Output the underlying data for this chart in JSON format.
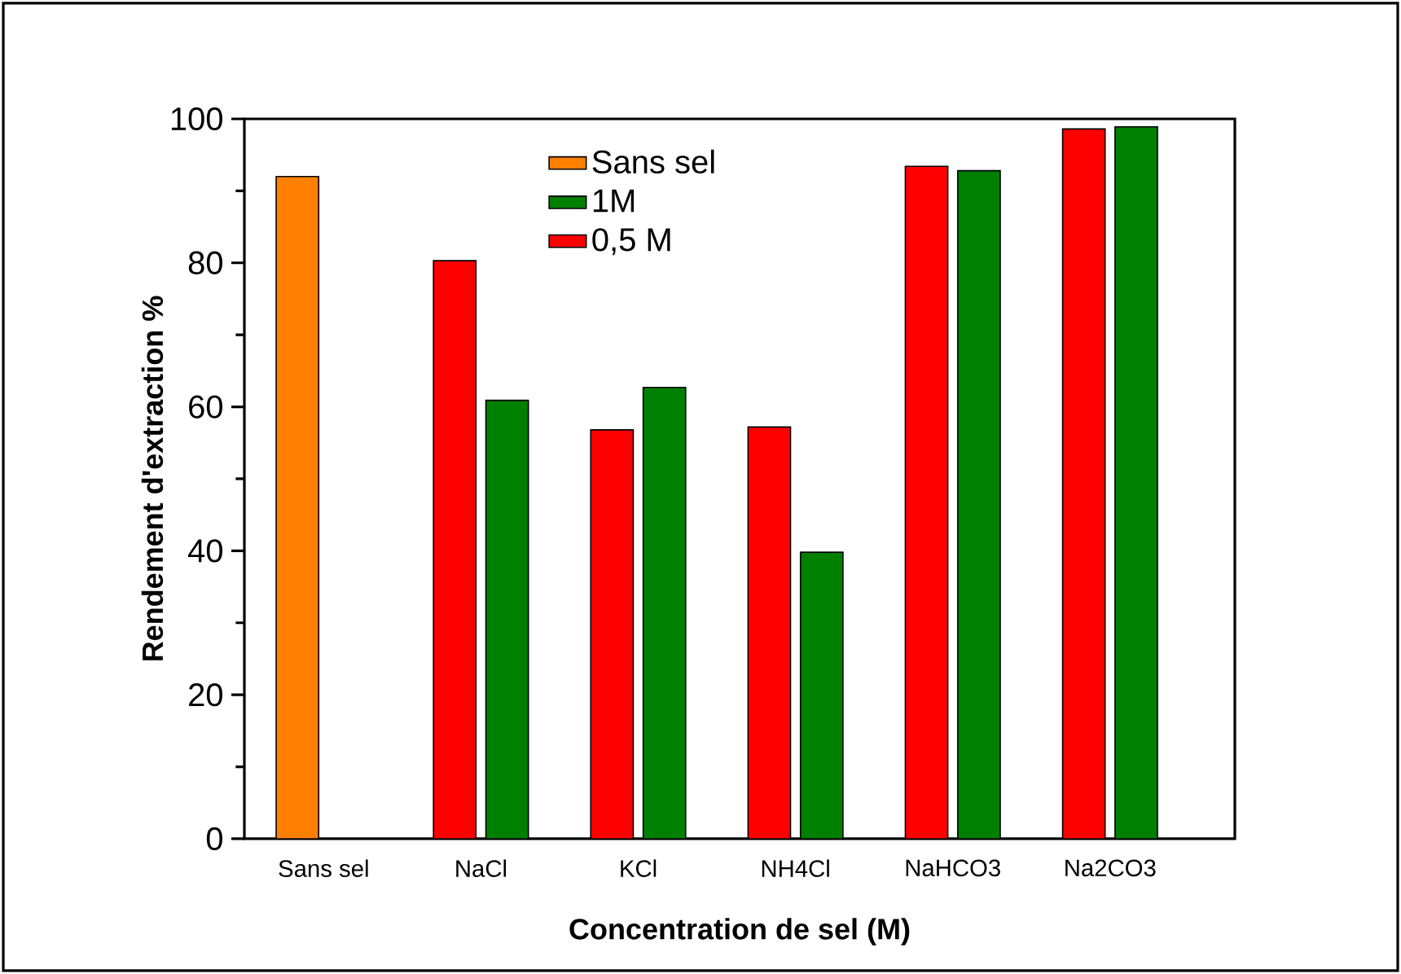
{
  "chart_data": {
    "type": "bar",
    "xlabel": "Concentration de sel (M)",
    "ylabel": "Rendement d'extraction %",
    "categories": [
      "Sans sel",
      "NaCl",
      "KCl",
      "NH4Cl",
      "NaHCO3",
      "Na2CO3"
    ],
    "series": [
      {
        "name": "Sans sel",
        "color": "#ff8000",
        "values": [
          92,
          null,
          null,
          null,
          null,
          null
        ]
      },
      {
        "name": "1M",
        "color": "#008000",
        "values": [
          null,
          60.9,
          62.7,
          39.8,
          92.8,
          98.9
        ]
      },
      {
        "name": "0,5 M",
        "color": "#ff0000",
        "values": [
          null,
          80.3,
          56.8,
          57.2,
          93.4,
          98.6
        ]
      }
    ],
    "ylim": [
      0,
      100
    ],
    "yticks": [
      0,
      20,
      40,
      60,
      80,
      100
    ],
    "grid": false,
    "legend": "top"
  }
}
